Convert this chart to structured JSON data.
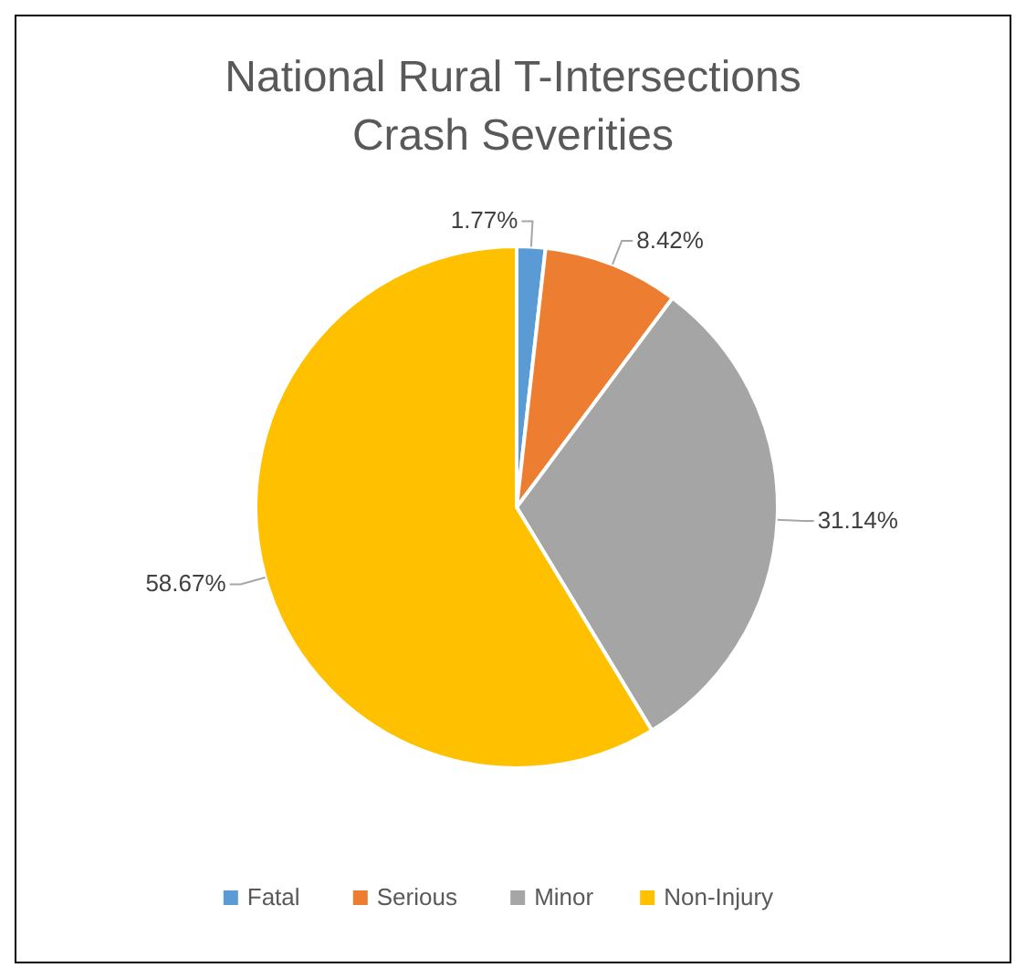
{
  "chart_data": {
    "type": "pie",
    "title": "National Rural T-Intersections\nCrash Severities",
    "categories": [
      "Fatal",
      "Serious",
      "Minor",
      "Non-Injury"
    ],
    "values": [
      1.77,
      8.42,
      31.14,
      58.67
    ],
    "value_labels": [
      "1.77%",
      "8.42%",
      "31.14%",
      "58.67%"
    ],
    "colors": [
      "#5b9bd5",
      "#ed7d31",
      "#a5a5a5",
      "#ffc000"
    ],
    "legend": "bottom"
  }
}
